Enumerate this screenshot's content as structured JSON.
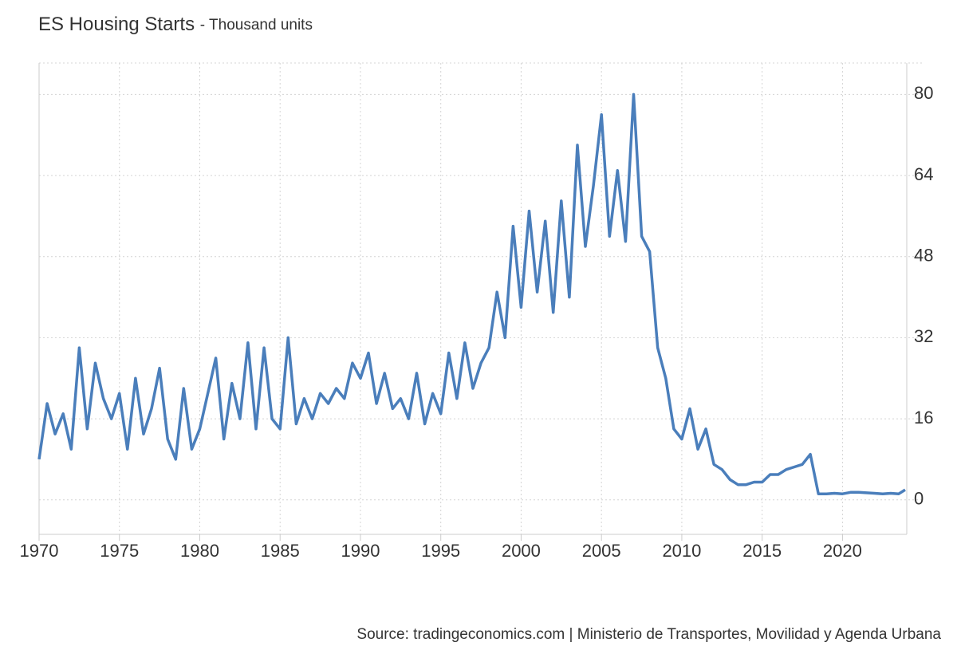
{
  "chart_data": {
    "type": "line",
    "title": "ES Housing Starts",
    "subtitle": "- Thousand units",
    "source": "Source: tradingeconomics.com | Ministerio de Transportes, Movilidad y Agenda Urbana",
    "xlim": [
      1970,
      2024
    ],
    "xticks": [
      1970,
      1975,
      1980,
      1985,
      1990,
      1995,
      2000,
      2005,
      2010,
      2015,
      2020
    ],
    "ylim": [
      -6.8,
      86.2
    ],
    "yticks": [
      0,
      16,
      32,
      48,
      64,
      80
    ],
    "grid": true,
    "series": [
      {
        "name": "ES Housing Starts",
        "color": "#4a7ebb",
        "x": [
          1970,
          1970.5,
          1971,
          1971.5,
          1972,
          1972.5,
          1973,
          1973.5,
          1974,
          1974.5,
          1975,
          1975.5,
          1976,
          1976.5,
          1977,
          1977.5,
          1978,
          1978.5,
          1979,
          1979.5,
          1980,
          1980.5,
          1981,
          1981.5,
          1982,
          1982.5,
          1983,
          1983.5,
          1984,
          1984.5,
          1985,
          1985.5,
          1986,
          1986.5,
          1987,
          1987.5,
          1988,
          1988.5,
          1989,
          1989.5,
          1990,
          1990.5,
          1991,
          1991.5,
          1992,
          1992.5,
          1993,
          1993.5,
          1994,
          1994.5,
          1995,
          1995.5,
          1996,
          1996.5,
          1997,
          1997.5,
          1998,
          1998.5,
          1999,
          1999.5,
          2000,
          2000.5,
          2001,
          2001.5,
          2002,
          2002.5,
          2003,
          2003.5,
          2004,
          2004.5,
          2005,
          2005.5,
          2006,
          2006.5,
          2007,
          2007.5,
          2008,
          2008.5,
          2009,
          2009.5,
          2010,
          2010.5,
          2011,
          2011.5,
          2012,
          2012.5,
          2013,
          2013.5,
          2014,
          2014.5,
          2015,
          2015.5,
          2016,
          2016.5,
          2017,
          2017.5,
          2018,
          2018.5,
          2019,
          2019.5,
          2020,
          2020.5,
          2021,
          2021.5,
          2022,
          2022.5,
          2023,
          2023.5,
          2023.9
        ],
        "values": [
          8,
          19,
          13,
          17,
          10,
          30,
          14,
          27,
          20,
          16,
          21,
          10,
          24,
          13,
          18,
          26,
          12,
          8,
          22,
          10,
          14,
          21,
          28,
          12,
          23,
          16,
          31,
          14,
          30,
          16,
          14,
          32,
          15,
          20,
          16,
          21,
          19,
          22,
          20,
          27,
          24,
          29,
          19,
          25,
          18,
          20,
          16,
          25,
          15,
          21,
          17,
          29,
          20,
          31,
          22,
          27,
          30,
          41,
          32,
          54,
          38,
          57,
          41,
          55,
          37,
          59,
          40,
          70,
          50,
          62,
          76,
          52,
          65,
          51,
          80,
          52,
          49,
          30,
          24,
          14,
          12,
          18,
          10,
          14,
          7,
          6,
          4,
          3,
          3,
          3.5,
          3.5,
          5,
          5,
          6,
          6.5,
          7,
          9,
          1.2,
          1.2,
          1.3,
          1.2,
          1.5,
          1.5,
          1.4,
          1.3,
          1.2,
          1.3,
          1.2,
          2
        ]
      }
    ]
  }
}
